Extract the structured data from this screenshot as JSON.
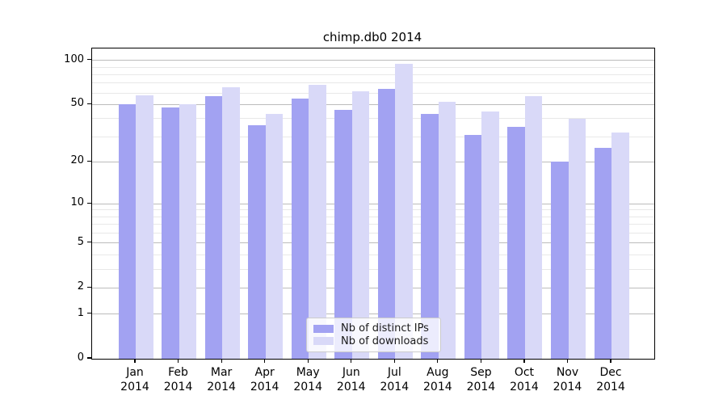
{
  "title": "chimp.db0 2014",
  "chart_data": {
    "type": "bar",
    "title": "chimp.db0 2014",
    "categories": [
      "Jan",
      "Feb",
      "Mar",
      "Apr",
      "May",
      "Jun",
      "Jul",
      "Aug",
      "Sep",
      "Oct",
      "Nov",
      "Dec"
    ],
    "x_label_second_line": "2014",
    "series": [
      {
        "name": "Nb of distinct IPs",
        "color": "#a2a2f2",
        "values": [
          50,
          48,
          57,
          36,
          55,
          46,
          64,
          43,
          31,
          35,
          20,
          25
        ]
      },
      {
        "name": "Nb of downloads",
        "color": "#d9d9f8",
        "values": [
          58,
          50,
          66,
          43,
          68,
          62,
          95,
          52,
          45,
          57,
          40,
          32
        ]
      }
    ],
    "xlabel": "",
    "ylabel": "",
    "y_scale": "log1p",
    "ylim": [
      0,
      120
    ],
    "y_major_ticks": [
      0,
      1,
      2,
      5,
      10,
      20,
      50,
      100
    ],
    "y_tick_labels": [
      "0",
      "1",
      "2",
      "5",
      "10",
      "20",
      "50",
      "100"
    ],
    "y_minor_gridlines": [
      3,
      4,
      6,
      7,
      8,
      9,
      30,
      40,
      60,
      70,
      80,
      90
    ],
    "grid": true,
    "legend_position": "lower center"
  },
  "legend": {
    "items": [
      {
        "label": "Nb of distinct IPs",
        "color": "#a2a2f2"
      },
      {
        "label": "Nb of downloads",
        "color": "#d9d9f8"
      }
    ]
  },
  "colors": {
    "bar_distinct_ips": "#a2a2f2",
    "bar_downloads": "#d9d9f8",
    "major_grid": "#bcbcbc",
    "minor_grid": "#e8e8e8",
    "spine": "#000000",
    "background": "#ffffff",
    "legend_border": "#cccccc"
  }
}
